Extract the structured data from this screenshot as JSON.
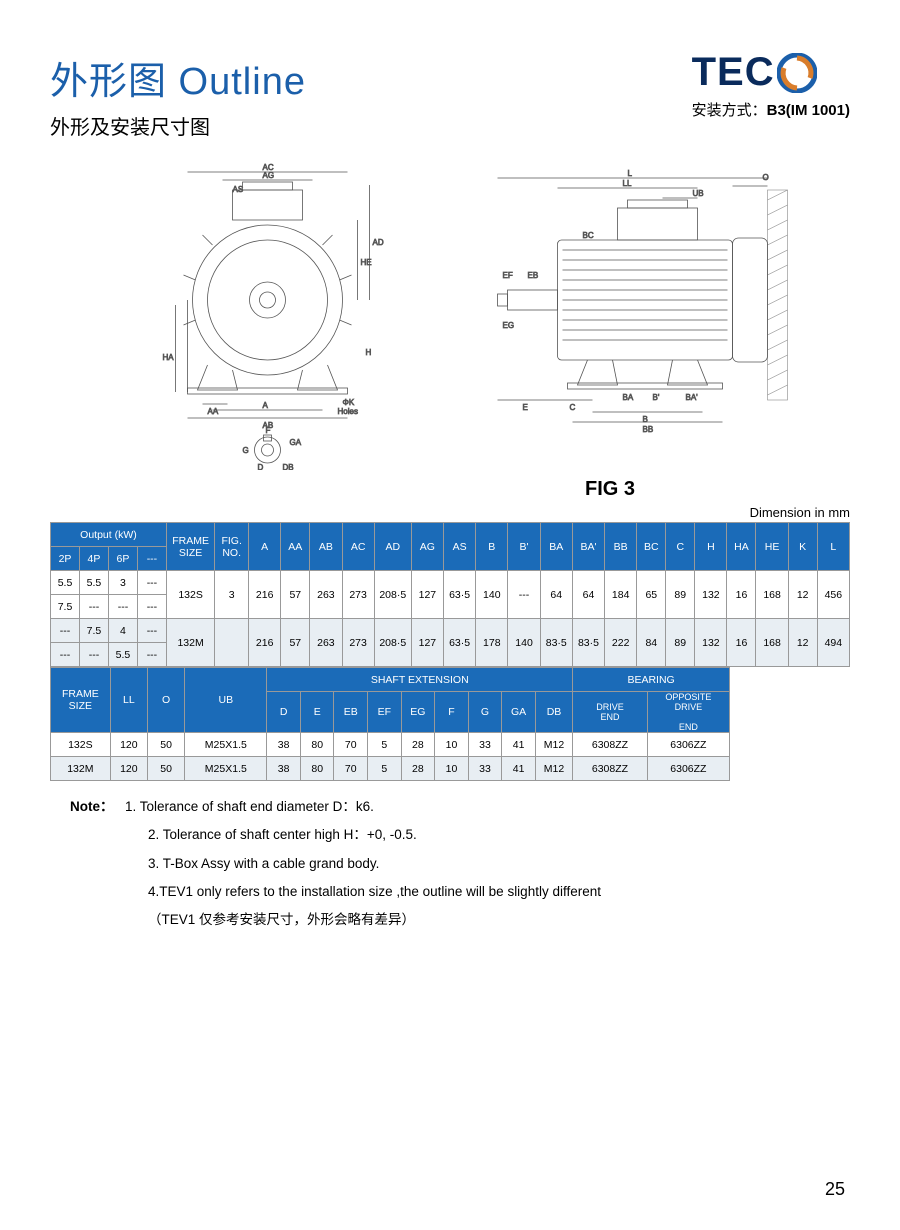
{
  "header": {
    "title_main": "外形图 Outline",
    "title_sub": "外形及安装尺寸图",
    "logo_text": "TEC",
    "install_prefix": "安装方式：",
    "install_value": "B3(IM 1001)"
  },
  "logo_colors": {
    "text": "#0a2b5c",
    "swirl_outer": "#1b5faa",
    "swirl_inner": "#d97d2b"
  },
  "figure": {
    "fig_label": "FIG 3",
    "dim_unit": "Dimension in  mm",
    "front_labels": [
      "AC",
      "AG",
      "AS",
      "HE",
      "AD",
      "HA",
      "H",
      "AA",
      "A",
      "AB",
      "ΦK",
      "Holes",
      "F",
      "G",
      "GA",
      "D",
      "DB"
    ],
    "side_labels": [
      "L",
      "LL",
      "O",
      "UB",
      "BC",
      "EF",
      "EB",
      "EG",
      "E",
      "C",
      "BA",
      "B'",
      "BA'",
      "B",
      "BB"
    ]
  },
  "table1": {
    "group_headers": {
      "output": "Output (kW)",
      "frame": "FRAME SIZE",
      "fig": "FIG. NO."
    },
    "pole_cols": [
      "2P",
      "4P",
      "6P",
      "---"
    ],
    "dim_cols": [
      "A",
      "AA",
      "AB",
      "AC",
      "AD",
      "AG",
      "AS",
      "B",
      "B'",
      "BA",
      "BA'",
      "BB",
      "BC",
      "C",
      "H",
      "HA",
      "HE",
      "K",
      "L"
    ],
    "rows": [
      {
        "poles": [
          [
            "5.5",
            "5.5",
            "3",
            "---"
          ],
          [
            "7.5",
            "---",
            "---",
            "---"
          ]
        ],
        "frame": "132S",
        "fig": "3",
        "dims": [
          "216",
          "57",
          "263",
          "273",
          "208·5",
          "127",
          "63·5",
          "140",
          "---",
          "64",
          "64",
          "184",
          "65",
          "89",
          "132",
          "16",
          "168",
          "12",
          "456"
        ],
        "alt": false
      },
      {
        "poles": [
          [
            "---",
            "7.5",
            "4",
            "---"
          ],
          [
            "---",
            "---",
            "5.5",
            "---"
          ]
        ],
        "frame": "132M",
        "fig": "",
        "dims": [
          "216",
          "57",
          "263",
          "273",
          "208·5",
          "127",
          "63·5",
          "178",
          "140",
          "83·5",
          "83·5",
          "222",
          "84",
          "89",
          "132",
          "16",
          "168",
          "12",
          "494"
        ],
        "alt": true
      }
    ]
  },
  "table2": {
    "head1": [
      "FRAME SIZE",
      "LL",
      "O",
      "UB"
    ],
    "shaft_group": "SHAFT  EXTENSION",
    "bearing_group": "BEARING",
    "shaft_cols": [
      "D",
      "E",
      "EB",
      "EF",
      "EG",
      "F",
      "G",
      "GA",
      "DB"
    ],
    "bearing_cols": [
      "DRIVE END",
      "OPPOSITE DRIVE  END"
    ],
    "rows": [
      {
        "cells": [
          "132S",
          "120",
          "50",
          "M25X1.5",
          "38",
          "80",
          "70",
          "5",
          "28",
          "10",
          "33",
          "41",
          "M12",
          "6308ZZ",
          "6306ZZ"
        ],
        "alt": false
      },
      {
        "cells": [
          "132M",
          "120",
          "50",
          "M25X1.5",
          "38",
          "80",
          "70",
          "5",
          "28",
          "10",
          "33",
          "41",
          "M12",
          "6308ZZ",
          "6306ZZ"
        ],
        "alt": true
      }
    ]
  },
  "notes": {
    "label": "Note：",
    "items": [
      "1. Tolerance  of  shaft  end  diameter  D：k6.",
      "2. Tolerance  of  shaft  center  high  H：+0, -0.5.",
      "3. T-Box Assy with a cable grand body.",
      "4.TEV1 only refers  to the installation size ,the outline will be slightly different",
      "（TEV1 仅参考安装尺寸，外形会略有差异）"
    ]
  },
  "page_num": "25",
  "colors": {
    "header_bg": "#1b6bb8",
    "header_fg": "#ffffff",
    "alt_bg": "#e8eef3",
    "border": "#999999",
    "title_blue": "#1b5faa"
  }
}
